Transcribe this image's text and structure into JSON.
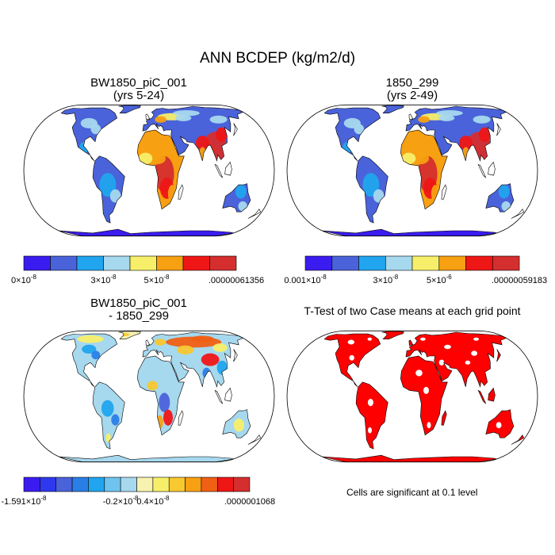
{
  "page_title": "ANN BCDEP (kg/m2/d)",
  "panels": [
    {
      "title_line1": "BW1850_piC_001",
      "title_line2": "(yrs 5-24)"
    },
    {
      "title_line1": "1850_299",
      "title_line2": "(yrs 2-49)"
    },
    {
      "title_line1": "BW1850_piC_001",
      "title_line2": "- 1850_299"
    },
    {
      "title_line1": "T-Test of two Case means at each grid point",
      "title_line2": ""
    }
  ],
  "significance_note": "Cells are significant at 0.1 level",
  "colorbars": [
    {
      "colors": [
        "#3b1cf0",
        "#4a63da",
        "#20a5ee",
        "#a6d8ee",
        "#f7ef6a",
        "#f7a012",
        "#ef1616",
        "#d42e2e"
      ],
      "label_positions": [
        0,
        3,
        5,
        8
      ],
      "labels": [
        {
          "main": "0×10",
          "sup": "-8"
        },
        {
          "main": "3×10",
          "sup": "-8"
        },
        {
          "main": "5×10",
          "sup": "-8"
        },
        {
          "main": ".00000061356",
          "sup": ""
        }
      ]
    },
    {
      "colors": [
        "#3b1cf0",
        "#4a63da",
        "#20a5ee",
        "#a6d8ee",
        "#f7ef6a",
        "#f7a012",
        "#ef1616",
        "#d42e2e"
      ],
      "label_positions": [
        0,
        3,
        5,
        8
      ],
      "labels": [
        {
          "main": "0.001×10",
          "sup": "-8"
        },
        {
          "main": "3×10",
          "sup": "-8"
        },
        {
          "main": "5×10",
          "sup": "-6"
        },
        {
          "main": ".00000059183",
          "sup": ""
        }
      ]
    },
    {
      "colors": [
        "#3b1cf0",
        "#2f38ee",
        "#4a63da",
        "#2a7fe6",
        "#20a5ee",
        "#6ec4ee",
        "#a6d8ee",
        "#f7f2b0",
        "#f7ef6a",
        "#f7c830",
        "#f7a012",
        "#f06014",
        "#ef1616",
        "#d42e2e"
      ],
      "label_positions": [
        0,
        6,
        8,
        14
      ],
      "labels": [
        {
          "main": "-1.591×10",
          "sup": "-8"
        },
        {
          "main": "-0.2×10",
          "sup": "-8"
        },
        {
          "main": "0.4×10",
          "sup": "-8"
        },
        {
          "main": ".0000001068",
          "sup": ""
        }
      ]
    }
  ],
  "chart_data": [
    {
      "type": "heatmap",
      "title": "BW1850_piC_001 (yrs 5-24)",
      "variable": "ANN BCDEP",
      "units": "kg/m2/d",
      "projection": "Robinson world map",
      "color_levels": [
        "0×10^-8",
        "3×10^-8",
        "5×10^-8",
        ".00000061356"
      ],
      "high_regions": [
        "central Africa",
        "South/East Asia",
        "Europe"
      ]
    },
    {
      "type": "heatmap",
      "title": "1850_299 (yrs 2-49)",
      "variable": "ANN BCDEP",
      "units": "kg/m2/d",
      "projection": "Robinson world map",
      "color_levels": [
        "0.001×10^-8",
        "3×10^-8",
        "5×10^-6",
        ".00000059183"
      ],
      "high_regions": [
        "central Africa",
        "South/East Asia",
        "Europe"
      ]
    },
    {
      "type": "heatmap",
      "title": "BW1850_piC_001 - 1850_299",
      "variable": "ANN BCDEP difference",
      "units": "kg/m2/d",
      "projection": "Robinson world map",
      "color_levels": [
        "-1.591×10^-8",
        "-0.2×10^-8",
        "0.4×10^-8",
        ".0000001068"
      ]
    },
    {
      "type": "heatmap",
      "title": "T-Test of two Case means at each grid point",
      "projection": "Robinson world map",
      "note": "Cells are significant at 0.1 level",
      "significant_color": "#ff0000"
    }
  ]
}
